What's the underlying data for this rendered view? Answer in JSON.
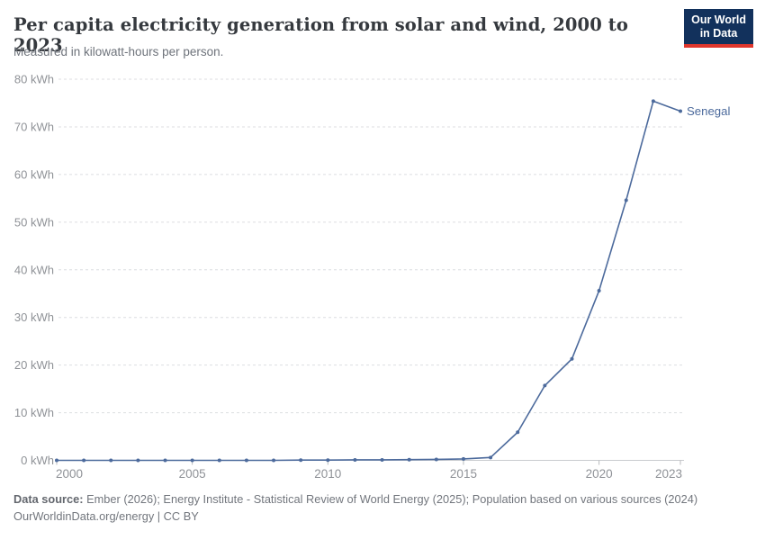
{
  "header": {
    "title": "Per capita electricity generation from solar and wind, 2000 to 2023",
    "subtitle": "Measured in kilowatt-hours per person.",
    "logo": {
      "line1": "Our World",
      "line2": "in Data",
      "bg_color": "#12315c",
      "accent_color": "#e0362c"
    }
  },
  "chart_data": {
    "type": "line",
    "title": "Per capita electricity generation from solar and wind, 2000 to 2023",
    "subtitle": "Measured in kilowatt-hours per person.",
    "x": [
      2000,
      2001,
      2002,
      2003,
      2004,
      2005,
      2006,
      2007,
      2008,
      2009,
      2010,
      2011,
      2012,
      2013,
      2014,
      2015,
      2016,
      2017,
      2018,
      2019,
      2020,
      2021,
      2022,
      2023
    ],
    "series": [
      {
        "name": "Senegal",
        "color": "#4C6A9C",
        "values": [
          0,
          0,
          0,
          0,
          0,
          0,
          0,
          0,
          0,
          0.05,
          0.05,
          0.1,
          0.1,
          0.15,
          0.2,
          0.3,
          0.6,
          5.9,
          15.7,
          21.3,
          35.6,
          54.6,
          75.4,
          73.3
        ]
      }
    ],
    "xlabel": "",
    "ylabel": "kWh",
    "ylim": [
      0,
      80
    ],
    "yticks": [
      0,
      10,
      20,
      30,
      40,
      50,
      60,
      70,
      80
    ],
    "ytick_suffix": " kWh",
    "xticks": [
      2000,
      2005,
      2010,
      2015,
      2020,
      2023
    ],
    "grid": "horizontal-dashed",
    "legend_position": "end-of-line-label",
    "colors": {
      "gridline": "#dcdee1",
      "axis_line": "#c9cbcf",
      "tick_mark": "#b8babd",
      "tick_text": "#8f9297"
    }
  },
  "footer": {
    "datasource_label": "Data source:",
    "datasource_text": " Ember (2026); Energy Institute - Statistical Review of World Energy (2025); Population based on various sources (2024)",
    "license_line": "OurWorldinData.org/energy | CC BY"
  }
}
